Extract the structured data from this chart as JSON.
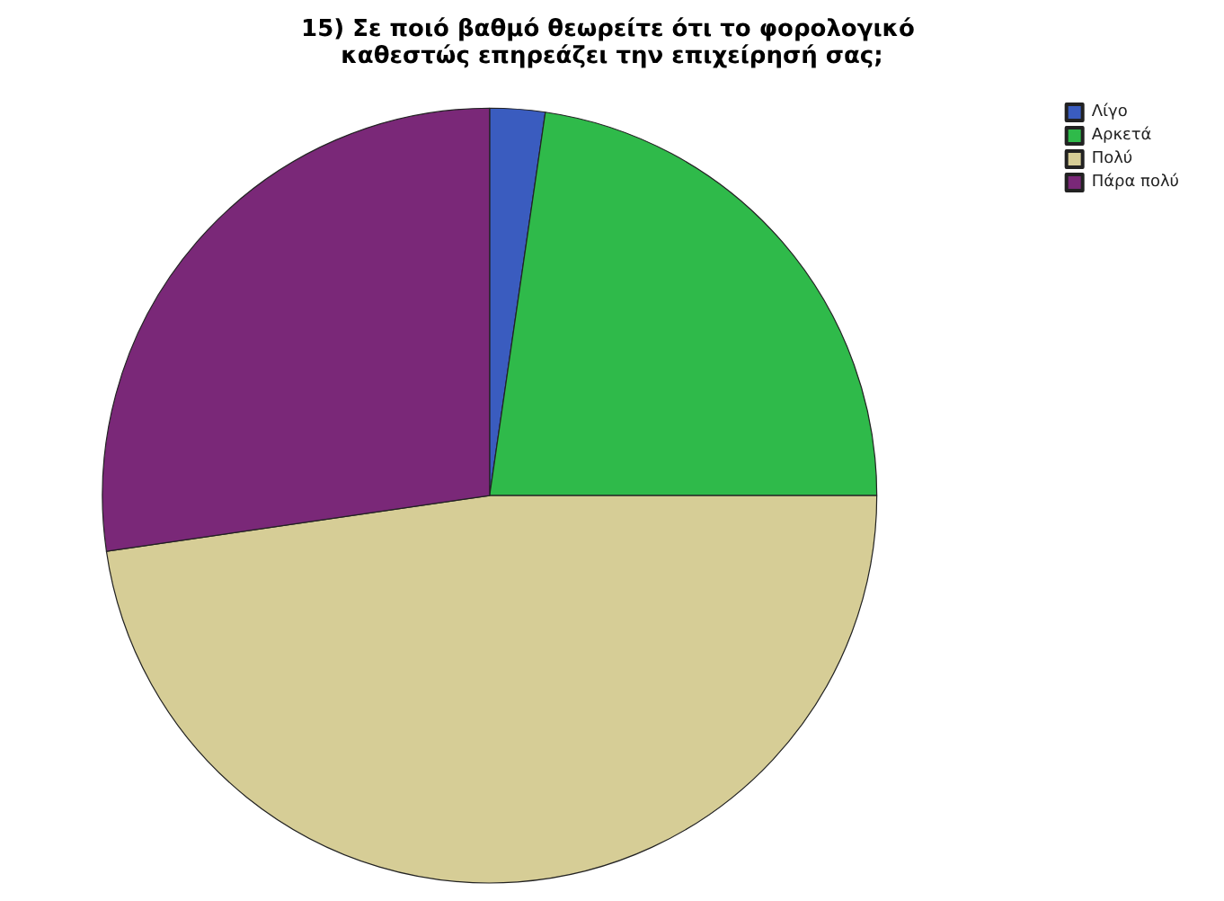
{
  "chart_data": {
    "type": "pie",
    "title": "15) Σε ποιό βαθμό θεωρείτε ότι το φορολογικό καθεστώς επηρεάζει την επιχείρησή σας;",
    "categories": [
      "Λίγο",
      "Αρκετά",
      "Πολύ",
      "Πάρα πολύ"
    ],
    "values": [
      2.3,
      22.7,
      47.7,
      27.3
    ],
    "colors": [
      "#3a5cbf",
      "#2fba4a",
      "#d6cd96",
      "#7a2878"
    ],
    "legend": "top right"
  }
}
